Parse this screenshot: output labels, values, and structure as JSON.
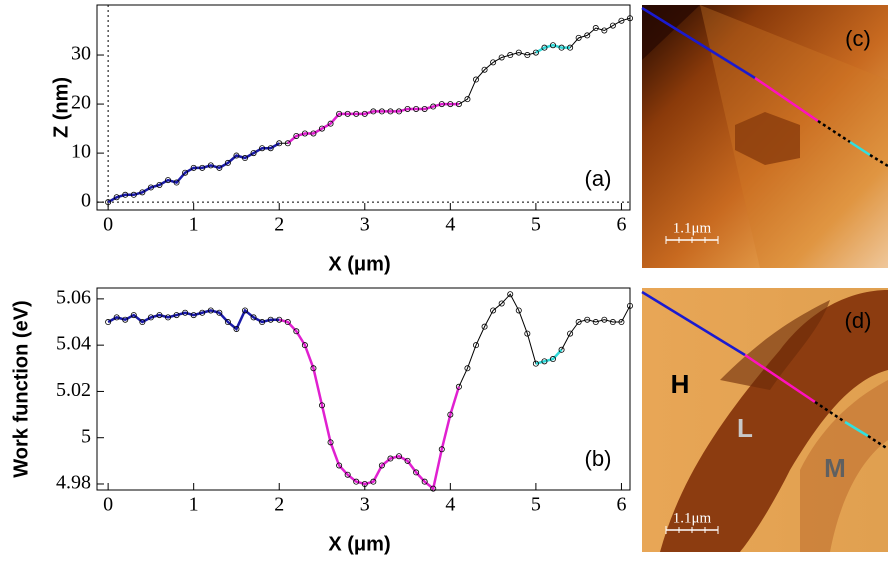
{
  "chart_data": [
    {
      "type": "line",
      "panel_label": "(a)",
      "xlabel": "X (μm)",
      "ylabel": "Z (nm)",
      "x": [
        0,
        0.1,
        0.2,
        0.3,
        0.4,
        0.5,
        0.6,
        0.7,
        0.8,
        0.9,
        1.0,
        1.1,
        1.2,
        1.3,
        1.4,
        1.5,
        1.6,
        1.7,
        1.8,
        1.9,
        2.0,
        2.1,
        2.2,
        2.3,
        2.4,
        2.5,
        2.6,
        2.7,
        2.8,
        2.9,
        3.0,
        3.1,
        3.2,
        3.3,
        3.4,
        3.5,
        3.6,
        3.7,
        3.8,
        3.9,
        4.0,
        4.1,
        4.2,
        4.3,
        4.4,
        4.5,
        4.6,
        4.7,
        4.8,
        4.9,
        5.0,
        5.1,
        5.2,
        5.3,
        5.4,
        5.5,
        5.6,
        5.7,
        5.8,
        5.9,
        6.0,
        6.1
      ],
      "series": [
        {
          "color": "#000000",
          "values": [
            0,
            1,
            1.5,
            1.5,
            2,
            3,
            3.5,
            4.5,
            4,
            6,
            7,
            7,
            7.5,
            7,
            8,
            9.5,
            9,
            10,
            11,
            11,
            12,
            12,
            13.5,
            14,
            14,
            15,
            16,
            18,
            18,
            18,
            18,
            18.5,
            18.5,
            18.5,
            18.5,
            19,
            19,
            19,
            19.5,
            20,
            20,
            20,
            21,
            25,
            27,
            28.5,
            29.5,
            30,
            30.5,
            30,
            30.5,
            31.5,
            32,
            31.5,
            31.5,
            33.5,
            34,
            35.5,
            35,
            36,
            37,
            37.5
          ]
        },
        {
          "color": "#1a1aa8",
          "values": [
            0,
            1,
            1.5,
            1.5,
            2,
            3,
            3.5,
            4.5,
            4,
            6,
            7,
            7,
            7.5,
            7,
            8,
            9.5,
            9,
            10,
            11,
            11,
            12,
            null,
            null,
            null,
            null,
            null,
            null,
            null,
            null,
            null,
            null,
            null,
            null,
            null,
            null,
            null,
            null,
            null,
            null,
            null,
            null,
            null,
            null,
            null,
            null,
            null,
            null,
            null,
            null,
            null,
            null,
            null,
            null,
            null,
            null,
            null,
            null,
            null,
            null,
            null,
            null,
            null
          ]
        },
        {
          "color": "#e020d0",
          "values": [
            null,
            null,
            null,
            null,
            null,
            null,
            null,
            null,
            null,
            null,
            null,
            null,
            null,
            null,
            null,
            null,
            null,
            null,
            null,
            null,
            null,
            12,
            13.5,
            14,
            14,
            15,
            16,
            18,
            18,
            18,
            18,
            18.5,
            18.5,
            18.5,
            18.5,
            19,
            19,
            19,
            19.5,
            20,
            20,
            20,
            null,
            null,
            null,
            null,
            null,
            null,
            null,
            null,
            null,
            null,
            null,
            null,
            null,
            null,
            null,
            null,
            null,
            null,
            null,
            null
          ]
        },
        {
          "color": "#30d8d8",
          "values": [
            null,
            null,
            null,
            null,
            null,
            null,
            null,
            null,
            null,
            null,
            null,
            null,
            null,
            null,
            null,
            null,
            null,
            null,
            null,
            null,
            null,
            null,
            null,
            null,
            null,
            null,
            null,
            null,
            null,
            null,
            null,
            null,
            null,
            null,
            null,
            null,
            null,
            null,
            null,
            null,
            null,
            null,
            null,
            null,
            null,
            null,
            null,
            null,
            null,
            null,
            30.5,
            31.5,
            32,
            31.5,
            31.5,
            null,
            null,
            null,
            null,
            null,
            null,
            null
          ]
        }
      ],
      "xlim": [
        -0.13,
        6.1
      ],
      "ylim": [
        -1.6,
        40.2
      ],
      "xticks": [
        0,
        1,
        2,
        3,
        4,
        5,
        6
      ],
      "yticks": [
        0,
        10,
        20,
        30
      ]
    },
    {
      "type": "line",
      "panel_label": "(b)",
      "xlabel": "X (μm)",
      "ylabel": "Work function (eV)",
      "x": [
        0,
        0.1,
        0.2,
        0.3,
        0.4,
        0.5,
        0.6,
        0.7,
        0.8,
        0.9,
        1.0,
        1.1,
        1.2,
        1.3,
        1.4,
        1.5,
        1.6,
        1.7,
        1.8,
        1.9,
        2.0,
        2.1,
        2.2,
        2.3,
        2.4,
        2.5,
        2.6,
        2.7,
        2.8,
        2.9,
        3.0,
        3.1,
        3.2,
        3.3,
        3.4,
        3.5,
        3.6,
        3.7,
        3.8,
        3.9,
        4.0,
        4.1,
        4.2,
        4.3,
        4.4,
        4.5,
        4.6,
        4.7,
        4.8,
        4.9,
        5.0,
        5.1,
        5.2,
        5.3,
        5.4,
        5.5,
        5.6,
        5.7,
        5.8,
        5.9,
        6.0,
        6.1
      ],
      "series": [
        {
          "color": "#000000",
          "values": [
            5.05,
            5.052,
            5.051,
            5.053,
            5.05,
            5.052,
            5.053,
            5.052,
            5.053,
            5.054,
            5.053,
            5.054,
            5.055,
            5.054,
            5.05,
            5.047,
            5.055,
            5.052,
            5.05,
            5.051,
            5.051,
            5.05,
            5.046,
            5.04,
            5.03,
            5.014,
            4.998,
            4.988,
            4.984,
            4.981,
            4.98,
            4.981,
            4.988,
            4.991,
            4.992,
            4.99,
            4.985,
            4.981,
            4.978,
            4.995,
            5.01,
            5.022,
            5.03,
            5.04,
            5.048,
            5.055,
            5.058,
            5.062,
            5.055,
            5.045,
            5.032,
            5.033,
            5.034,
            5.038,
            5.045,
            5.05,
            5.051,
            5.05,
            5.051,
            5.05,
            5.05,
            5.057
          ]
        },
        {
          "color": "#1a1aa8",
          "values": [
            5.05,
            5.052,
            5.051,
            5.053,
            5.05,
            5.052,
            5.053,
            5.052,
            5.053,
            5.054,
            5.053,
            5.054,
            5.055,
            5.054,
            5.05,
            5.047,
            5.055,
            5.052,
            5.05,
            5.051,
            5.051,
            null,
            null,
            null,
            null,
            null,
            null,
            null,
            null,
            null,
            null,
            null,
            null,
            null,
            null,
            null,
            null,
            null,
            null,
            null,
            null,
            null,
            null,
            null,
            null,
            null,
            null,
            null,
            null,
            null,
            null,
            null,
            null,
            null,
            null,
            null,
            null,
            null,
            null,
            null,
            null,
            null
          ]
        },
        {
          "color": "#e020d0",
          "values": [
            null,
            null,
            null,
            null,
            null,
            null,
            null,
            null,
            null,
            null,
            null,
            5.054,
            null,
            null,
            null,
            null,
            null,
            null,
            null,
            null,
            5.051,
            5.05,
            5.046,
            5.04,
            5.03,
            5.014,
            4.998,
            4.988,
            4.984,
            4.981,
            4.98,
            4.981,
            4.988,
            4.991,
            4.992,
            4.99,
            4.985,
            4.981,
            4.978,
            4.995,
            5.01,
            5.022,
            null,
            null,
            null,
            null,
            null,
            null,
            null,
            null,
            null,
            null,
            null,
            null,
            null,
            null,
            null,
            null,
            null,
            null,
            null,
            null
          ]
        },
        {
          "color": "#30d8d8",
          "values": [
            null,
            null,
            null,
            null,
            null,
            null,
            null,
            null,
            null,
            null,
            null,
            null,
            null,
            null,
            null,
            null,
            null,
            null,
            null,
            null,
            null,
            null,
            null,
            null,
            null,
            null,
            null,
            null,
            null,
            null,
            null,
            null,
            null,
            null,
            null,
            null,
            null,
            null,
            null,
            null,
            null,
            null,
            null,
            null,
            null,
            null,
            null,
            null,
            null,
            null,
            5.032,
            5.033,
            5.034,
            5.038,
            null,
            null,
            null,
            null,
            null,
            null,
            null,
            null
          ]
        }
      ],
      "xlim": [
        -0.13,
        6.1
      ],
      "ylim": [
        4.9774,
        5.0647
      ],
      "xticks": [
        0,
        1,
        2,
        3,
        4,
        5,
        6
      ],
      "yticks": [
        4.98,
        5,
        5.02,
        5.04,
        5.06
      ]
    }
  ],
  "images": [
    {
      "panel_label": "(c)",
      "scale_bar": "1.1μm"
    },
    {
      "panel_label": "(d)",
      "scale_bar": "1.1μm",
      "regions": [
        "H",
        "L",
        "M"
      ]
    }
  ]
}
